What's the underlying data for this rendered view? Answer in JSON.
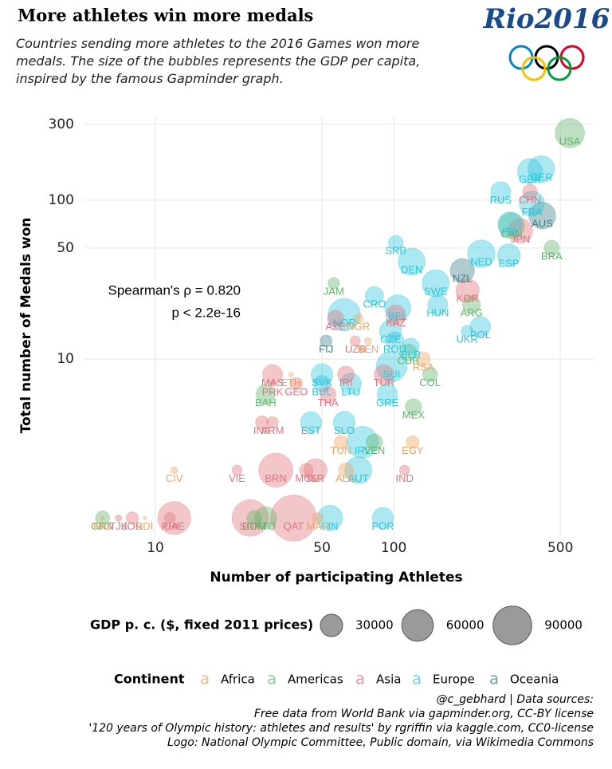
{
  "chart_data": {
    "type": "scatter",
    "title": "More athletes win more medals",
    "subtitle": "Countries sending more athletes to the 2016 Games won more medals. The size of the bubbles represents the GDP per capita, inspired by the famous Gapminder graph.",
    "logo_text": "Rio2016",
    "x_label": "Number of participating Athletes",
    "y_label": "Total number of Medals won",
    "x_log": true,
    "y_log": true,
    "grid": true,
    "xlim": [
      5,
      690
    ],
    "ylim": [
      0.77,
      340
    ],
    "xticks": [
      10,
      50,
      100,
      500
    ],
    "yticks": [
      10,
      50,
      100,
      300
    ],
    "annotation": [
      "Spearman's ρ = 0.820",
      "p < 2.2e-16"
    ],
    "size_legend_title": "GDP p. c. ($, fixed 2011 prices)",
    "size_legend": [
      30000,
      60000,
      90000
    ],
    "color_legend_title": "Continent",
    "series": [
      {
        "name": "Africa",
        "color": "#f0a35e",
        "labels": [
          "NIG",
          "BDI",
          "CIV",
          "ETH",
          "NGR",
          "KEN",
          "TUN",
          "ALG",
          "RSA",
          "EGY",
          "MAR"
        ],
        "x": [
          6,
          9,
          12,
          37,
          71,
          78,
          60,
          63,
          133,
          120,
          48
        ],
        "values": [
          1,
          1,
          2,
          8,
          18,
          13,
          3,
          2,
          10,
          3,
          1
        ],
        "size": [
          900,
          700,
          3000,
          1500,
          5500,
          3000,
          11000,
          13000,
          12000,
          10000,
          7000
        ]
      },
      {
        "name": "Americas",
        "color": "#5fb56a",
        "labels": [
          "GRN",
          "DOM",
          "TTO",
          "BAH",
          "JAM",
          "MEX",
          "VEN",
          "CUB",
          "COL",
          "ARG",
          "CAN",
          "BRA",
          "USA"
        ],
        "x": [
          6,
          26,
          29,
          29,
          56,
          121,
          83,
          115,
          142,
          212,
          312,
          460,
          548
        ],
        "values": [
          1,
          1,
          1,
          6,
          30,
          5,
          3,
          11,
          8,
          22,
          69,
          50,
          264
        ],
        "size": [
          12000,
          13000,
          30000,
          22000,
          8000,
          16000,
          16000,
          18000,
          13000,
          19000,
          41000,
          14000,
          52000
        ]
      },
      {
        "name": "Asia",
        "color": "#e0737a",
        "labels": [
          "JOR",
          "TJK",
          "UAE",
          "PHI",
          "SGP",
          "QAT",
          "VIE",
          "BRN",
          "MGL",
          "ISR",
          "IND",
          "INA",
          "ARM",
          "PRK",
          "MAS",
          "GEO",
          "THA",
          "IRI",
          "TUR",
          "UZB",
          "AZE",
          "KAZ",
          "KOR",
          "JPN",
          "CHN"
        ],
        "x": [
          8,
          7,
          12,
          11.5,
          25,
          38,
          22,
          32,
          43,
          47,
          111,
          28,
          31,
          31,
          31,
          39,
          53,
          63,
          91,
          69,
          57,
          102,
          204,
          340,
          373
        ],
        "values": [
          1,
          1,
          1,
          1,
          1,
          1,
          2,
          2,
          2,
          2,
          2,
          4,
          4,
          7,
          8,
          7,
          6,
          8,
          8,
          13,
          18,
          19,
          27,
          64,
          113
        ],
        "size": [
          9000,
          2500,
          66000,
          7000,
          80000,
          127000,
          6000,
          70000,
          11000,
          32000,
          6000,
          10000,
          8000,
          1700,
          24000,
          9000,
          15000,
          17000,
          23000,
          6000,
          16000,
          23000,
          33000,
          36000,
          13000
        ]
      },
      {
        "name": "Europe",
        "color": "#2cc6dc",
        "labels": [
          "FIN",
          "POR",
          "AUT",
          "IRL",
          "EST",
          "SLO",
          "BUL",
          "SVK",
          "LTU",
          "GRE",
          "SUI",
          "NOR",
          "CRO",
          "BEL",
          "ROU",
          "BLR",
          "CZE",
          "HUN",
          "SWE",
          "POL",
          "UKR",
          "SRB",
          "DEN",
          "NED",
          "ESP",
          "RUS",
          "FRA",
          "GBR",
          "GER",
          "ITA"
        ],
        "x": [
          54,
          90,
          71,
          74,
          45,
          62,
          50,
          50,
          66,
          94,
          98,
          62,
          83,
          104,
          101,
          118,
          97,
          153,
          150,
          231,
          203,
          102,
          119,
          233,
          304,
          281,
          380,
          373,
          416,
          307
        ],
        "values": [
          1,
          1,
          2,
          3,
          4,
          4,
          7,
          8,
          7,
          6,
          9,
          19,
          25,
          21,
          13,
          12,
          15,
          22,
          30,
          16,
          15,
          54,
          41,
          46,
          45,
          113,
          95,
          152,
          157,
          71
        ],
        "size": [
          39000,
          27000,
          44000,
          60000,
          27000,
          29000,
          17000,
          28000,
          27000,
          25000,
          57000,
          63000,
          20000,
          41000,
          20000,
          17000,
          29000,
          24000,
          44000,
          25000,
          8000,
          13000,
          44000,
          46000,
          31000,
          24000,
          38000,
          38000,
          43000,
          34000
        ]
      },
      {
        "name": "Oceania",
        "color": "#3c7f8c",
        "labels": [
          "FIJ",
          "NZL",
          "AUS"
        ],
        "x": [
          52,
          194,
          420
        ],
        "values": [
          13,
          36,
          80
        ],
        "size": [
          8500,
          35000,
          43000
        ]
      }
    ],
    "source": [
      "@c_gebhard | Data sources:",
      "Free data from World Bank via gapminder.org, CC-BY license",
      "'120 years of Olympic history: athletes and results' by rgriffin via kaggle.com, CC0-license",
      "Logo: National Olympic Committee, Public domain, via Wikimedia Commons"
    ]
  }
}
